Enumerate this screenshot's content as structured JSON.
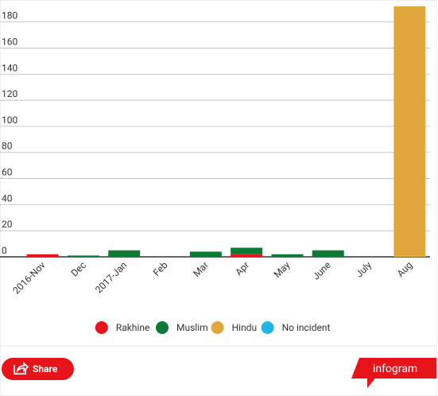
{
  "chart_data": {
    "type": "bar",
    "stacked": true,
    "categories": [
      "2016-Nov",
      "Dec",
      "2017-Jan",
      "Feb",
      "Mar",
      "Apr",
      "May",
      "June",
      "July",
      "Aug"
    ],
    "series": [
      {
        "name": "Rakhine",
        "color": "#e8141b",
        "values": [
          2,
          null,
          null,
          null,
          null,
          2,
          null,
          null,
          null,
          null
        ]
      },
      {
        "name": "Muslim",
        "color": "#0a7a35",
        "values": [
          null,
          1,
          5,
          null,
          4,
          5,
          2,
          5,
          null,
          null
        ]
      },
      {
        "name": "Hindu",
        "color": "#e0a83c",
        "values": [
          null,
          null,
          null,
          null,
          null,
          null,
          null,
          null,
          null,
          192
        ]
      },
      {
        "name": "No incident",
        "color": "#22b5e6",
        "values": [
          null,
          null,
          null,
          null,
          null,
          null,
          null,
          null,
          null,
          null
        ]
      }
    ],
    "ylim": [
      0,
      195
    ],
    "yticks": [
      0,
      20,
      40,
      60,
      80,
      100,
      120,
      140,
      160,
      180
    ],
    "grid": true
  },
  "ui": {
    "share": "Share",
    "brand": "infogram"
  }
}
